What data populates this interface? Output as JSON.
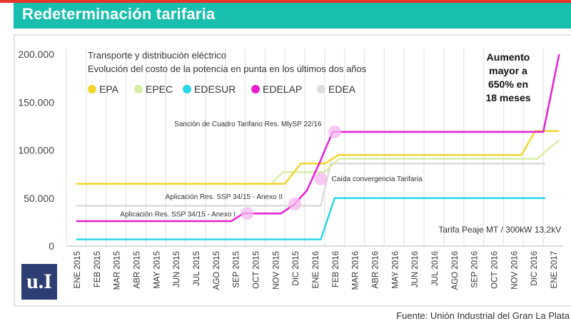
{
  "header": {
    "title": "Redeterminación tarifaria"
  },
  "logo": {
    "text": "u.I"
  },
  "footer": {
    "source": "Fuente: Unión Industrial del Gran La Plata"
  },
  "colors": {
    "banner": "#19bfae",
    "top_rule": "#e8342a",
    "logo": "#2c3e73"
  },
  "chart_data": {
    "type": "line",
    "title": "Transporte y distribución eléctrico",
    "subtitle": "Evolución del costo de la potencia en punta en los últimos dos años",
    "xlabel": "",
    "ylabel": "",
    "ylim": [
      0,
      200000
    ],
    "yticks": [
      0,
      50000,
      100000,
      150000,
      200000
    ],
    "ytick_labels": [
      "0",
      "50.000",
      "100.000",
      "150.000",
      "200.000"
    ],
    "x": [
      "ENE 2015",
      "FEB 2015",
      "MAR 2015",
      "ABR 2015",
      "MAY 2015",
      "JUN 2015",
      "JUL 2015",
      "AGO 2015",
      "SEP 2015",
      "OCT 2015",
      "NOV 2015",
      "DIC 2015",
      "ENE 2016",
      "FEB 2016",
      "MAR 2016",
      "ABR 2016",
      "MAY 2016",
      "JUN 2016",
      "JUL 2016",
      "AGO 2016",
      "SEP 2016",
      "OCT 2016",
      "NOV 2016",
      "DIC 2016",
      "ENE 2017"
    ],
    "grid": true,
    "legend_position": "top-left",
    "series": [
      {
        "name": "EPA",
        "color": "#f2d530",
        "points": [
          [
            0,
            65000
          ],
          [
            10.5,
            65000
          ],
          [
            11.3,
            86000
          ],
          [
            12.5,
            86000
          ],
          [
            13.2,
            95000
          ],
          [
            22.4,
            95000
          ],
          [
            23.1,
            120000
          ],
          [
            24.3,
            120000
          ]
        ]
      },
      {
        "name": "EPEC",
        "color": "#d8eda6",
        "points": [
          [
            0,
            65000
          ],
          [
            9.8,
            65000
          ],
          [
            10.4,
            77000
          ],
          [
            12.5,
            77000
          ],
          [
            13.2,
            91000
          ],
          [
            23.2,
            91000
          ],
          [
            23.8,
            102000
          ],
          [
            24.3,
            110000
          ]
        ]
      },
      {
        "name": "EDESUR",
        "color": "#29d6e3",
        "points": [
          [
            0,
            7000
          ],
          [
            12.3,
            7000
          ],
          [
            13.0,
            50000
          ],
          [
            23.6,
            50000
          ]
        ]
      },
      {
        "name": "EDELAP",
        "color": "#e61fd3",
        "points": [
          [
            0,
            26000
          ],
          [
            7.8,
            26000
          ],
          [
            8.4,
            34000
          ],
          [
            10.3,
            34000
          ],
          [
            11.0,
            44000
          ],
          [
            11.6,
            58000
          ],
          [
            12.2,
            85000
          ],
          [
            12.9,
            119000
          ],
          [
            23.5,
            119000
          ],
          [
            24.3,
            200000
          ]
        ]
      },
      {
        "name": "EDEA",
        "color": "#dcdcdc",
        "points": [
          [
            0,
            42000
          ],
          [
            12.3,
            42000
          ],
          [
            12.8,
            86000
          ],
          [
            23.6,
            86000
          ]
        ]
      }
    ],
    "markers": [
      {
        "x": 8.6,
        "y": 34000
      },
      {
        "x": 11.0,
        "y": 44000
      },
      {
        "x": 12.3,
        "y": 70000
      },
      {
        "x": 13.0,
        "y": 119000
      }
    ],
    "annotations": [
      {
        "id": "ann-ssp34-anexo1",
        "text": "Aplicación Res. SSP 34/15 - Anexo I",
        "x": 8.3,
        "y": 34000
      },
      {
        "id": "ann-ssp34-anexo2",
        "text": "Aplicación Res. SSP 34/15 - Anexo II",
        "x": 10.6,
        "y": 49000
      },
      {
        "id": "ann-convergencia",
        "text": "Caída convergencia Tarifaria",
        "x": 12.7,
        "y": 70000
      },
      {
        "id": "ann-cuadro",
        "text": "Sanción de Cuadro Tarifario Res. MlySP 22/16",
        "x": 12.7,
        "y": 119000
      },
      {
        "id": "ann-peaje",
        "text": "Tarifa Peaje MT / 300kW 13,2kV",
        "x": 24.4,
        "y": 14000
      }
    ],
    "callout": [
      "Aumento",
      "mayor a",
      "650% en",
      "18 meses"
    ]
  }
}
